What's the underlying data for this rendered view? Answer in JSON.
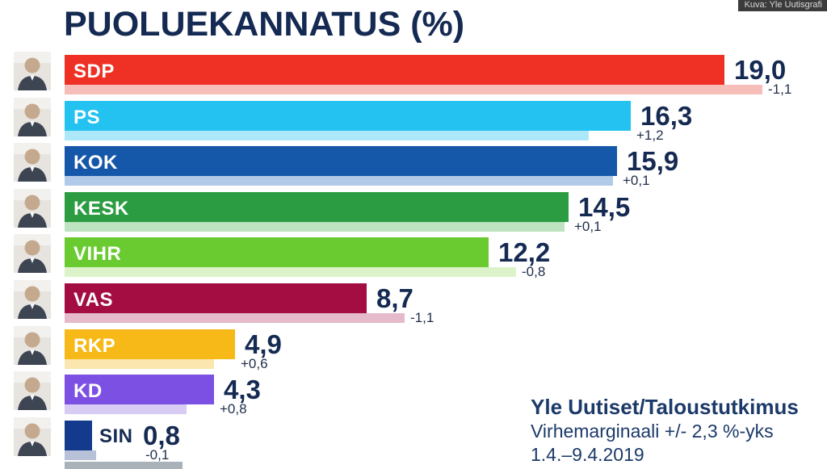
{
  "title": "PUOLUEKANNATUS (%)",
  "credit_badge": "Kuva: Yle Uutisgrafi",
  "source": {
    "line1": "Yle Uutiset/Taloustutkimus",
    "line2": "Virhemarginaali +/- 2,3 %-yks",
    "line3": "1.4.–9.4.2019"
  },
  "chart_data": {
    "type": "bar",
    "orientation": "horizontal",
    "title": "PUOLUEKANNATUS (%)",
    "unit": "%",
    "x_range": [
      0,
      22
    ],
    "grid": false,
    "legend": "none",
    "note": "Each party row shows current support (solid bar, large value) and change vs previous poll (thin pale bar = previous value, small signed number)",
    "rows": [
      {
        "party": "SDP",
        "value": 19.0,
        "value_label": "19,0",
        "change": -1.1,
        "change_label": "-1,1",
        "color": "#ee3124",
        "light_color": "#f7bdb9",
        "has_photo": true,
        "label_inside": true,
        "partial": false
      },
      {
        "party": "PS",
        "value": 16.3,
        "value_label": "16,3",
        "change": 1.2,
        "change_label": "+1,2",
        "color": "#23c2f0",
        "light_color": "#ade8fa",
        "has_photo": true,
        "label_inside": true,
        "partial": false
      },
      {
        "party": "KOK",
        "value": 15.9,
        "value_label": "15,9",
        "change": 0.1,
        "change_label": "+0,1",
        "color": "#1557a9",
        "light_color": "#b1cae8",
        "has_photo": true,
        "label_inside": true,
        "partial": false
      },
      {
        "party": "KESK",
        "value": 14.5,
        "value_label": "14,5",
        "change": 0.1,
        "change_label": "+0,1",
        "color": "#2b9c41",
        "light_color": "#bde3c0",
        "has_photo": true,
        "label_inside": true,
        "partial": false
      },
      {
        "party": "VIHR",
        "value": 12.2,
        "value_label": "12,2",
        "change": -0.8,
        "change_label": "-0,8",
        "color": "#69cb30",
        "light_color": "#dcf2c9",
        "has_photo": true,
        "label_inside": true,
        "partial": false
      },
      {
        "party": "VAS",
        "value": 8.7,
        "value_label": "8,7",
        "change": -1.1,
        "change_label": "-1,1",
        "color": "#a30d42",
        "light_color": "#e5bbcb",
        "has_photo": true,
        "label_inside": true,
        "partial": false
      },
      {
        "party": "RKP",
        "value": 4.9,
        "value_label": "4,9",
        "change": 0.6,
        "change_label": "+0,6",
        "color": "#f7b917",
        "light_color": "#fce6b0",
        "has_photo": true,
        "label_inside": true,
        "partial": false
      },
      {
        "party": "KD",
        "value": 4.3,
        "value_label": "4,3",
        "change": 0.8,
        "change_label": "+0,8",
        "color": "#7c50e3",
        "light_color": "#d9ccf4",
        "has_photo": true,
        "label_inside": true,
        "partial": false
      },
      {
        "party": "SIN",
        "value": 0.8,
        "value_label": "0,8",
        "change": -0.1,
        "change_label": "-0,1",
        "color": "#133a8c",
        "light_color": "#b7c1d7",
        "has_photo": true,
        "label_inside": false,
        "partial": false
      },
      {
        "party": "",
        "value": 3.4,
        "value_label": "",
        "change": null,
        "change_label": "",
        "color": "#a9b1b9",
        "light_color": "",
        "has_photo": false,
        "label_inside": false,
        "partial": true
      }
    ]
  }
}
